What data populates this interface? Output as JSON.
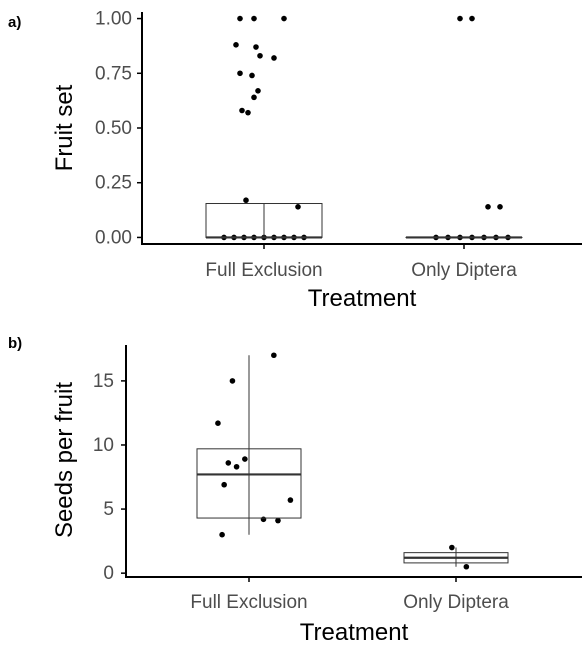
{
  "colors": {
    "point": "#000000",
    "box_stroke": "#333333",
    "axis": "#000000",
    "tick_text": "#4d4d4d"
  },
  "chart_data": [
    {
      "type": "box",
      "panel_label": "a)",
      "xlabel": "Treatment",
      "ylabel": "Fruit set",
      "categories": [
        "Full Exclusion",
        "Only Diptera"
      ],
      "ylim": [
        -0.03,
        1.03
      ],
      "yticks": [
        0,
        0.25,
        0.5,
        0.75,
        1
      ],
      "ytick_labels": [
        "0.00",
        "0.25",
        "0.50",
        "0.75",
        "1.00"
      ],
      "grid": false,
      "legend": "none",
      "boxes": [
        {
          "category": "Full Exclusion",
          "min": 0,
          "q1": 0,
          "median": 0,
          "q3": 0.155,
          "max": 0.155
        },
        {
          "category": "Only Diptera",
          "min": 0,
          "q1": 0,
          "median": 0,
          "q3": 0,
          "max": 0
        }
      ],
      "points": [
        {
          "category": "Full Exclusion",
          "jitter": -0.12,
          "y": 1.0
        },
        {
          "category": "Full Exclusion",
          "jitter": -0.05,
          "y": 1.0
        },
        {
          "category": "Full Exclusion",
          "jitter": 0.1,
          "y": 1.0
        },
        {
          "category": "Full Exclusion",
          "jitter": -0.14,
          "y": 0.88
        },
        {
          "category": "Full Exclusion",
          "jitter": -0.04,
          "y": 0.87
        },
        {
          "category": "Full Exclusion",
          "jitter": -0.02,
          "y": 0.83
        },
        {
          "category": "Full Exclusion",
          "jitter": 0.05,
          "y": 0.82
        },
        {
          "category": "Full Exclusion",
          "jitter": -0.12,
          "y": 0.75
        },
        {
          "category": "Full Exclusion",
          "jitter": -0.06,
          "y": 0.74
        },
        {
          "category": "Full Exclusion",
          "jitter": -0.03,
          "y": 0.67
        },
        {
          "category": "Full Exclusion",
          "jitter": -0.05,
          "y": 0.64
        },
        {
          "category": "Full Exclusion",
          "jitter": -0.11,
          "y": 0.58
        },
        {
          "category": "Full Exclusion",
          "jitter": -0.08,
          "y": 0.57
        },
        {
          "category": "Full Exclusion",
          "jitter": -0.09,
          "y": 0.17
        },
        {
          "category": "Full Exclusion",
          "jitter": 0.17,
          "y": 0.14
        },
        {
          "category": "Full Exclusion",
          "jitter": -0.2,
          "y": 0.0
        },
        {
          "category": "Full Exclusion",
          "jitter": -0.15,
          "y": 0.0
        },
        {
          "category": "Full Exclusion",
          "jitter": -0.1,
          "y": 0.0
        },
        {
          "category": "Full Exclusion",
          "jitter": -0.05,
          "y": 0.0
        },
        {
          "category": "Full Exclusion",
          "jitter": 0.0,
          "y": 0.0
        },
        {
          "category": "Full Exclusion",
          "jitter": 0.05,
          "y": 0.0
        },
        {
          "category": "Full Exclusion",
          "jitter": 0.1,
          "y": 0.0
        },
        {
          "category": "Full Exclusion",
          "jitter": 0.15,
          "y": 0.0
        },
        {
          "category": "Full Exclusion",
          "jitter": 0.2,
          "y": 0.0
        },
        {
          "category": "Only Diptera",
          "jitter": -0.02,
          "y": 1.0
        },
        {
          "category": "Only Diptera",
          "jitter": 0.04,
          "y": 1.0
        },
        {
          "category": "Only Diptera",
          "jitter": 0.12,
          "y": 0.14
        },
        {
          "category": "Only Diptera",
          "jitter": 0.18,
          "y": 0.14
        },
        {
          "category": "Only Diptera",
          "jitter": -0.14,
          "y": 0.0
        },
        {
          "category": "Only Diptera",
          "jitter": -0.08,
          "y": 0.0
        },
        {
          "category": "Only Diptera",
          "jitter": -0.02,
          "y": 0.0
        },
        {
          "category": "Only Diptera",
          "jitter": 0.04,
          "y": 0.0
        },
        {
          "category": "Only Diptera",
          "jitter": 0.1,
          "y": 0.0
        },
        {
          "category": "Only Diptera",
          "jitter": 0.16,
          "y": 0.0
        },
        {
          "category": "Only Diptera",
          "jitter": 0.22,
          "y": 0.0
        }
      ]
    },
    {
      "type": "box",
      "panel_label": "b)",
      "xlabel": "Treatment",
      "ylabel": "Seeds per fruit",
      "categories": [
        "Full Exclusion",
        "Only Diptera"
      ],
      "ylim": [
        -0.3,
        17.8
      ],
      "yticks": [
        0,
        5,
        10,
        15
      ],
      "ytick_labels": [
        "0",
        "5",
        "10",
        "15"
      ],
      "grid": false,
      "legend": "none",
      "boxes": [
        {
          "category": "Full Exclusion",
          "min": 3.0,
          "q1": 4.3,
          "median": 7.7,
          "q3": 9.7,
          "max": 17.0
        },
        {
          "category": "Only Diptera",
          "min": 0.5,
          "q1": 0.8,
          "median": 1.2,
          "q3": 1.6,
          "max": 2.0
        }
      ],
      "points": [
        {
          "category": "Full Exclusion",
          "jitter": 0.12,
          "y": 17.0
        },
        {
          "category": "Full Exclusion",
          "jitter": -0.08,
          "y": 15.0
        },
        {
          "category": "Full Exclusion",
          "jitter": -0.15,
          "y": 11.7
        },
        {
          "category": "Full Exclusion",
          "jitter": -0.02,
          "y": 8.9
        },
        {
          "category": "Full Exclusion",
          "jitter": -0.1,
          "y": 8.6
        },
        {
          "category": "Full Exclusion",
          "jitter": -0.06,
          "y": 8.3
        },
        {
          "category": "Full Exclusion",
          "jitter": -0.12,
          "y": 6.9
        },
        {
          "category": "Full Exclusion",
          "jitter": 0.2,
          "y": 5.7
        },
        {
          "category": "Full Exclusion",
          "jitter": 0.07,
          "y": 4.2
        },
        {
          "category": "Full Exclusion",
          "jitter": 0.14,
          "y": 4.1
        },
        {
          "category": "Full Exclusion",
          "jitter": -0.13,
          "y": 3.0
        },
        {
          "category": "Only Diptera",
          "jitter": -0.02,
          "y": 2.0
        },
        {
          "category": "Only Diptera",
          "jitter": 0.05,
          "y": 0.5
        }
      ]
    }
  ]
}
